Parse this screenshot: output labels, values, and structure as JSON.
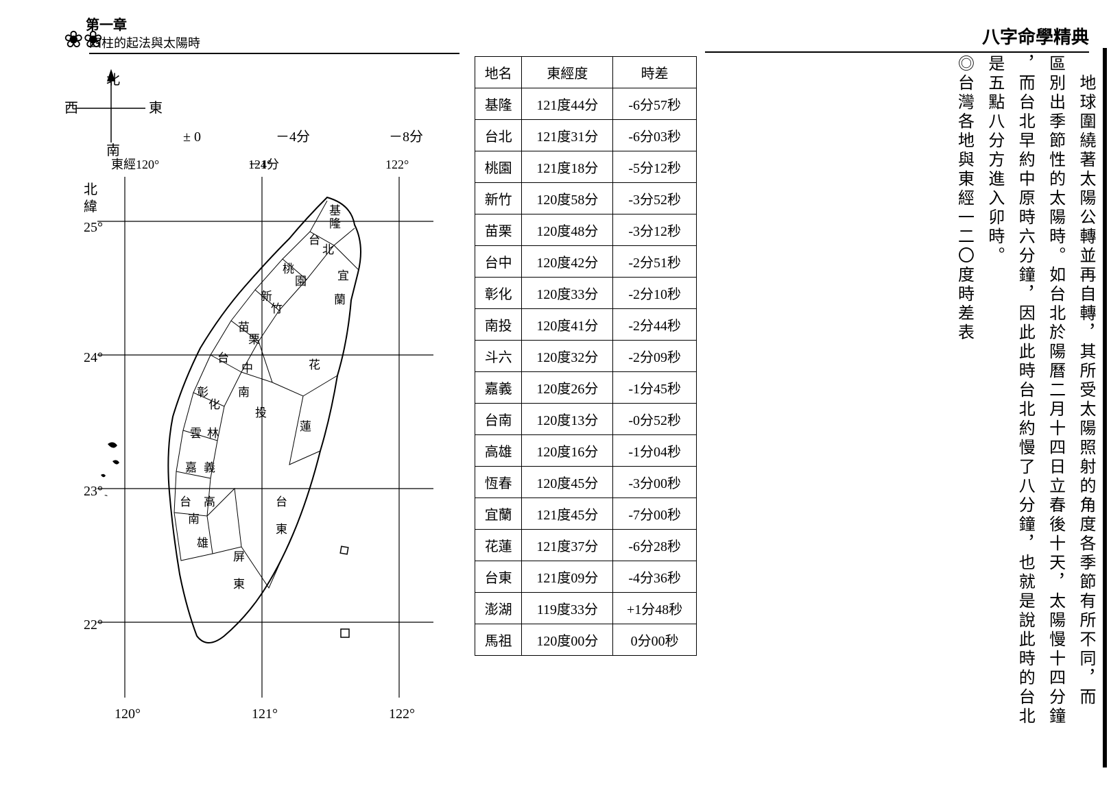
{
  "left_page": {
    "chapter": "第一章",
    "subtitle": "四柱的起法與太陽時"
  },
  "right_page": {
    "book_title": "八字命學精典"
  },
  "map": {
    "compass": {
      "n": "北",
      "s": "南",
      "e": "東",
      "w": "西"
    },
    "lon_marks": [
      {
        "label": "± 0",
        "sub": "東經120°",
        "x_deg": 120
      },
      {
        "label": "－4分",
        "sub": "121°",
        "x_deg": 121
      },
      {
        "label": "－8分",
        "sub": "122°",
        "x_deg": 122
      }
    ],
    "lat_label": "北緯",
    "lat_marks": [
      "25°",
      "24°",
      "23°",
      "22°"
    ],
    "bottom_lon": [
      "120°",
      "121°",
      "122°"
    ],
    "regions": [
      "基隆",
      "台北",
      "桃園",
      "新竹",
      "苗栗",
      "台中",
      "彰化",
      "南投",
      "雲林",
      "嘉義",
      "台南",
      "高雄",
      "屏東",
      "台東",
      "花蓮",
      "宜蘭"
    ]
  },
  "table": {
    "headers": [
      "地名",
      "東經度",
      "時差"
    ],
    "rows": [
      [
        "基隆",
        "121度44分",
        "-6分57秒"
      ],
      [
        "台北",
        "121度31分",
        "-6分03秒"
      ],
      [
        "桃園",
        "121度18分",
        "-5分12秒"
      ],
      [
        "新竹",
        "120度58分",
        "-3分52秒"
      ],
      [
        "苗栗",
        "120度48分",
        "-3分12秒"
      ],
      [
        "台中",
        "120度42分",
        "-2分51秒"
      ],
      [
        "彰化",
        "120度33分",
        "-2分10秒"
      ],
      [
        "南投",
        "120度41分",
        "-2分44秒"
      ],
      [
        "斗六",
        "120度32分",
        "-2分09秒"
      ],
      [
        "嘉義",
        "120度26分",
        "-1分45秒"
      ],
      [
        "台南",
        "120度13分",
        "-0分52秒"
      ],
      [
        "高雄",
        "120度16分",
        "-1分04秒"
      ],
      [
        "恆春",
        "120度45分",
        "-3分00秒"
      ],
      [
        "宜蘭",
        "121度45分",
        "-7分00秒"
      ],
      [
        "花蓮",
        "121度37分",
        "-6分28秒"
      ],
      [
        "台東",
        "121度09分",
        "-4分36秒"
      ],
      [
        "澎湖",
        "119度33分",
        "+1分48秒"
      ],
      [
        "馬祖",
        "120度00分",
        "0分00秒"
      ]
    ]
  },
  "vertical_text": {
    "col1": "　地球圍繞著太陽公轉並再自轉，其所受太陽照射的角度各季節有所不同，而",
    "col2": "區別出季節性的太陽時。如台北於陽曆二月十四日立春後十天，太陽慢十四分鐘",
    "col3": "，而台北早約中原時六分鐘，因此此時台北約慢了八分鐘，也就是說此時的台北",
    "col4": "是五點八分方進入卯時。",
    "heading": "◎台灣各地與東經一二〇度時差表"
  }
}
